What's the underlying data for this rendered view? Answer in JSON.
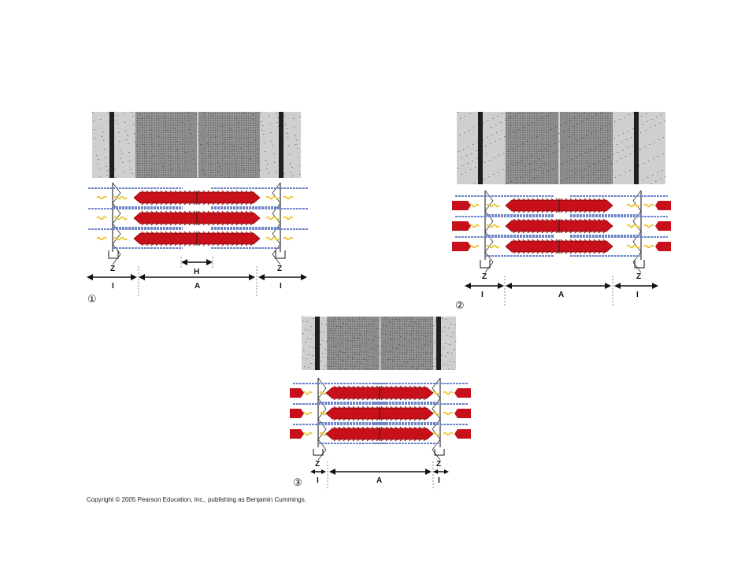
{
  "panels": [
    {
      "number": "①",
      "z_label": "Z",
      "h_label": "H",
      "i_label": "I",
      "a_label": "A"
    },
    {
      "number": "②",
      "z_label": "Z",
      "i_label": "I",
      "a_label": "A"
    },
    {
      "number": "③",
      "z_label": "Z",
      "i_label": "I",
      "a_label": "A"
    }
  ],
  "copyright": "Copyright © 2005 Pearson Education, Inc., publishing as Benjamin Cummings.",
  "colors": {
    "myosin": "#c8101a",
    "myosin_dark": "#8a0a10",
    "actin": "#6f86c8",
    "titin": "#e8c020",
    "z_line": "#333333",
    "micrograph_light": "#cfcfcf",
    "micrograph_dark": "#1e1e1e"
  }
}
